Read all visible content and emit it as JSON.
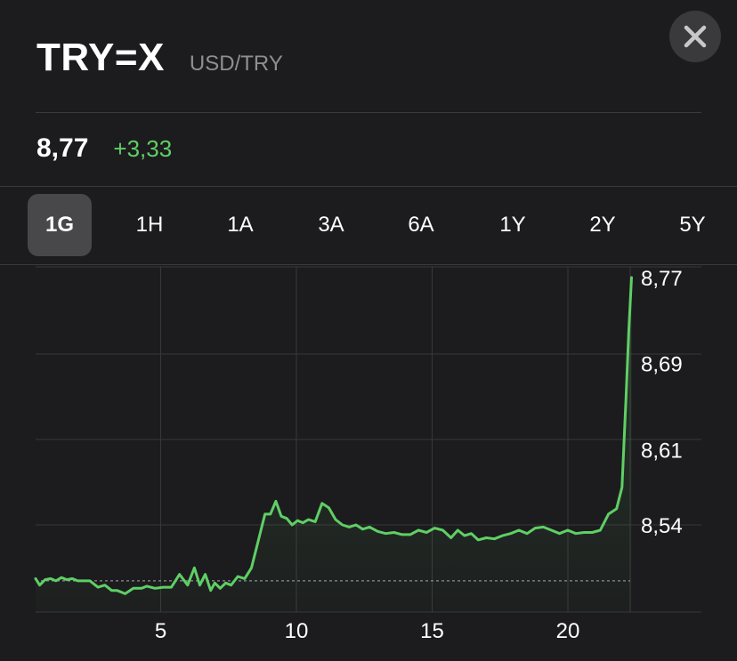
{
  "header": {
    "symbol": "TRY=X",
    "pair": "USD/TRY"
  },
  "close_icon": "close-icon",
  "quote": {
    "price": "8,77",
    "change": "+3,33",
    "change_color": "#5fcf65"
  },
  "ranges": {
    "items": [
      "1G",
      "1H",
      "1A",
      "3A",
      "6A",
      "1Y",
      "2Y",
      "5Y"
    ],
    "selected": "1G"
  },
  "chart_data": {
    "type": "line",
    "grid": true,
    "line_color": "#5fcf65",
    "x_ticks": [
      {
        "value": 5,
        "label": "5"
      },
      {
        "value": 10,
        "label": "10"
      },
      {
        "value": 15,
        "label": "15"
      },
      {
        "value": 20,
        "label": "20"
      }
    ],
    "y_ticks": [
      {
        "value": 8.77,
        "label": "8,77"
      },
      {
        "value": 8.69,
        "label": "8,69"
      },
      {
        "value": 8.61,
        "label": "8,61"
      },
      {
        "value": 8.54,
        "label": "8,54"
      }
    ],
    "xlim": [
      0,
      22.5
    ],
    "ylim": [
      8.46,
      8.77
    ],
    "previous_close": 8.488,
    "x": [
      0,
      0.15,
      0.35,
      0.55,
      0.75,
      0.95,
      1.15,
      1.35,
      1.55,
      1.75,
      2.0,
      2.3,
      2.55,
      2.8,
      3.0,
      3.3,
      3.6,
      3.9,
      4.1,
      4.4,
      4.7,
      5.0,
      5.3,
      5.6,
      5.85,
      6.05,
      6.25,
      6.45,
      6.6,
      6.8,
      7.0,
      7.2,
      7.45,
      7.7,
      7.95,
      8.2,
      8.45,
      8.65,
      8.85,
      9.05,
      9.25,
      9.45,
      9.65,
      9.85,
      10.05,
      10.3,
      10.55,
      10.8,
      11.05,
      11.3,
      11.55,
      11.8,
      12.05,
      12.3,
      12.6,
      12.9,
      13.2,
      13.5,
      13.8,
      14.1,
      14.4,
      14.7,
      15.0,
      15.3,
      15.55,
      15.8,
      16.05,
      16.3,
      16.6,
      16.9,
      17.2,
      17.5,
      17.8,
      18.1,
      18.4,
      18.7,
      19.0,
      19.3,
      19.6,
      19.9,
      20.2,
      20.5,
      20.8,
      21.1,
      21.4,
      21.6,
      21.75,
      21.85,
      21.95
    ],
    "values": [
      8.49,
      8.484,
      8.489,
      8.49,
      8.488,
      8.491,
      8.489,
      8.49,
      8.488,
      8.488,
      8.488,
      8.482,
      8.484,
      8.479,
      8.479,
      8.476,
      8.481,
      8.481,
      8.483,
      8.481,
      8.482,
      8.482,
      8.494,
      8.484,
      8.5,
      8.484,
      8.494,
      8.479,
      8.486,
      8.481,
      8.486,
      8.484,
      8.492,
      8.49,
      8.5,
      8.525,
      8.55,
      8.55,
      8.562,
      8.548,
      8.546,
      8.54,
      8.544,
      8.542,
      8.545,
      8.543,
      8.56,
      8.556,
      8.545,
      8.54,
      8.538,
      8.54,
      8.536,
      8.538,
      8.534,
      8.532,
      8.533,
      8.531,
      8.531,
      8.535,
      8.533,
      8.537,
      8.535,
      8.528,
      8.535,
      8.53,
      8.532,
      8.526,
      8.528,
      8.527,
      8.53,
      8.532,
      8.535,
      8.532,
      8.537,
      8.538,
      8.535,
      8.532,
      8.535,
      8.532,
      8.533,
      8.533,
      8.535,
      8.55,
      8.555,
      8.575,
      8.66,
      8.72,
      8.77
    ]
  }
}
